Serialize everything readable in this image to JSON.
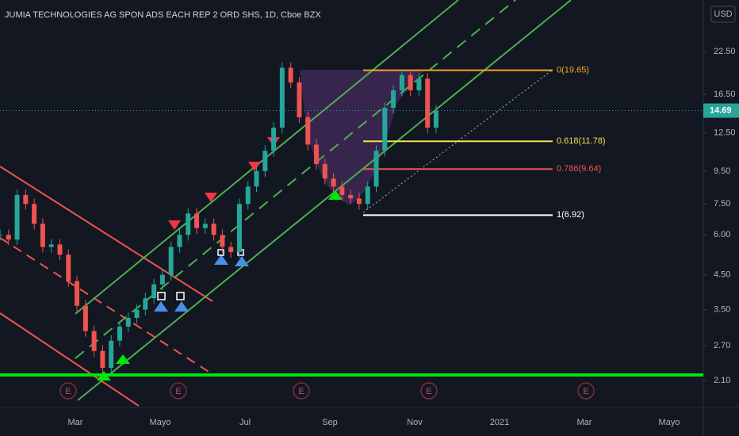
{
  "chart_data": {
    "type": "candlestick",
    "title": "JUMIA TECHNOLOGIES AG SPON ADS EACH REP 2 ORD SHS, 1D, Cboe BZX",
    "currency": "USD",
    "log_scale": true,
    "ylim": [
      1.73,
      32.6
    ],
    "yticks": [
      {
        "value": 2.1,
        "label": "2.10"
      },
      {
        "value": 2.7,
        "label": "2.70"
      },
      {
        "value": 3.5,
        "label": "3.50"
      },
      {
        "value": 4.5,
        "label": "4.50"
      },
      {
        "value": 6,
        "label": "6.00"
      },
      {
        "value": 7.5,
        "label": "7.50"
      },
      {
        "value": 9.5,
        "label": "9.50"
      },
      {
        "value": 12.5,
        "label": "12.50"
      },
      {
        "value": 16.5,
        "label": "16.50"
      },
      {
        "value": 22.5,
        "label": "22.50"
      }
    ],
    "x_labels": [
      "Mar",
      "Mayo",
      "Jul",
      "Sep",
      "Nov",
      "2021",
      "Mar",
      "Mayo"
    ],
    "values": [
      6.0,
      5.8,
      8.0,
      7.5,
      6.5,
      5.5,
      5.6,
      5.2,
      4.3,
      3.6,
      3.0,
      2.6,
      2.3,
      2.8,
      3.1,
      3.3,
      3.5,
      3.8,
      4.2,
      4.5,
      5.5,
      6.0,
      7.0,
      6.3,
      6.5,
      6.0,
      5.5,
      5.3,
      7.5,
      8.5,
      9.5,
      11,
      13,
      20,
      18,
      14,
      11.5,
      10,
      9,
      8.5,
      8.0,
      7.8,
      7.5,
      8.5,
      11,
      15,
      17,
      19,
      17,
      18.5,
      13,
      14.69
    ],
    "up_color": "#26a69a",
    "down_color": "#ef5350",
    "last_price": {
      "value": 14.69,
      "label": "14.69"
    },
    "fib_levels": [
      {
        "value": 19.65,
        "label": "0(19.65)",
        "color": "#f5a623"
      },
      {
        "value": 11.78,
        "label": "0.618(11.78)",
        "color": "#f2e14c"
      },
      {
        "value": 9.64,
        "label": "0.786(9.64)",
        "color": "#ef5350"
      },
      {
        "value": 6.92,
        "label": "1(6.92)",
        "color": "#ffffff"
      }
    ],
    "earnings_markers": [
      "E",
      "E",
      "E",
      "E",
      "E"
    ]
  }
}
